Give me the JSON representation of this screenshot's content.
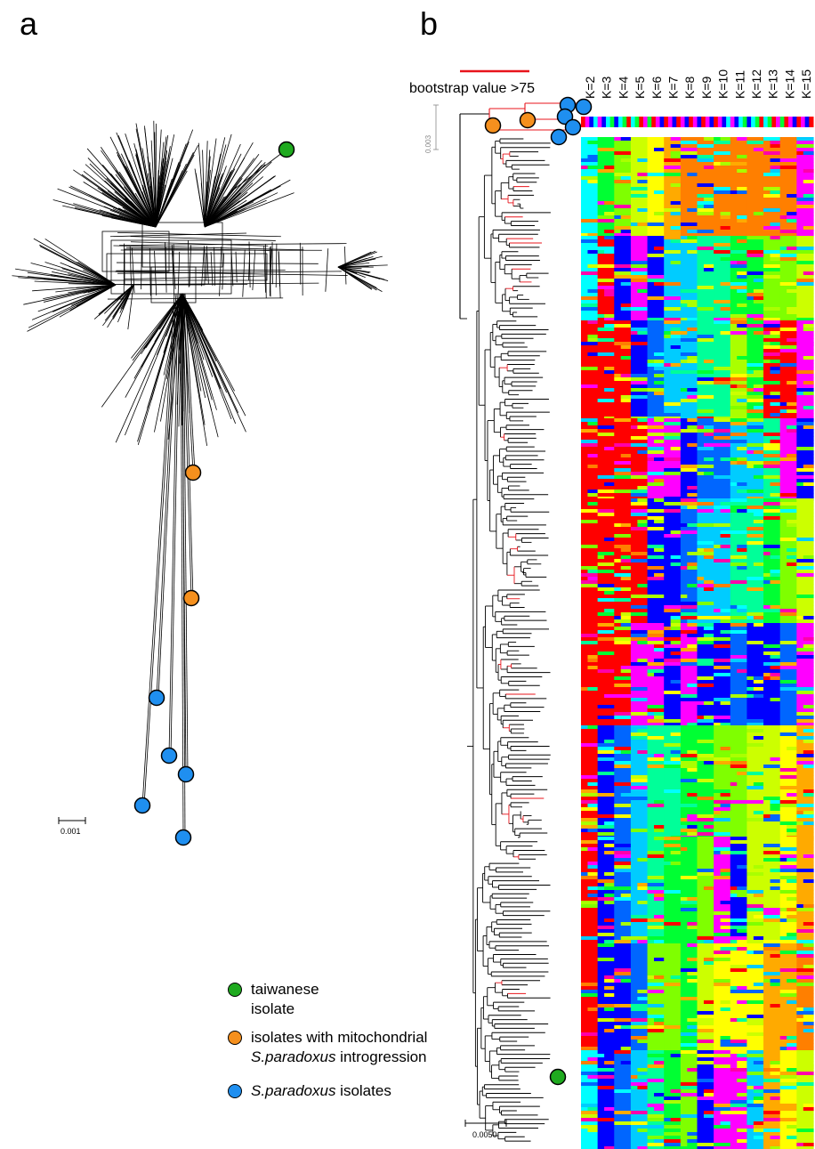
{
  "panels": {
    "a": "a",
    "b": "b"
  },
  "scale_bars": {
    "network": "0.001",
    "tree": "0.0050",
    "inset": "0.003"
  },
  "bootstrap_label": "bootstrap value >75",
  "k_labels": [
    "K=2",
    "K=3",
    "K=4",
    "K=5",
    "K=6",
    "K=7",
    "K=8",
    "K=9",
    "K=10",
    "K=11",
    "K=12",
    "K=13",
    "K=14",
    "K=15"
  ],
  "legend": {
    "taiwanese_line1": "taiwanese",
    "taiwanese_line2": "isolate",
    "introgression_line1": "isolates with mitochondrial",
    "introgression_species": "S.paradoxus",
    "introgression_rest": " introgression",
    "paradoxus_species": "S.paradoxus",
    "paradoxus_rest": " isolates"
  },
  "colors": {
    "taiwanese": "#1faa1f",
    "introgression": "#f5901e",
    "paradoxus": "#1f8ff0",
    "bootstrap": "#e8141b",
    "cluster_palette": [
      "#ff0000",
      "#00ffff",
      "#00ff33",
      "#7fff00",
      "#ccff00",
      "#ffff00",
      "#ffaa00",
      "#ff7f00",
      "#ff00ff",
      "#0000ff",
      "#0066ff",
      "#00ccff",
      "#00ff99",
      "#aaff00",
      "#ff00aa"
    ]
  }
}
